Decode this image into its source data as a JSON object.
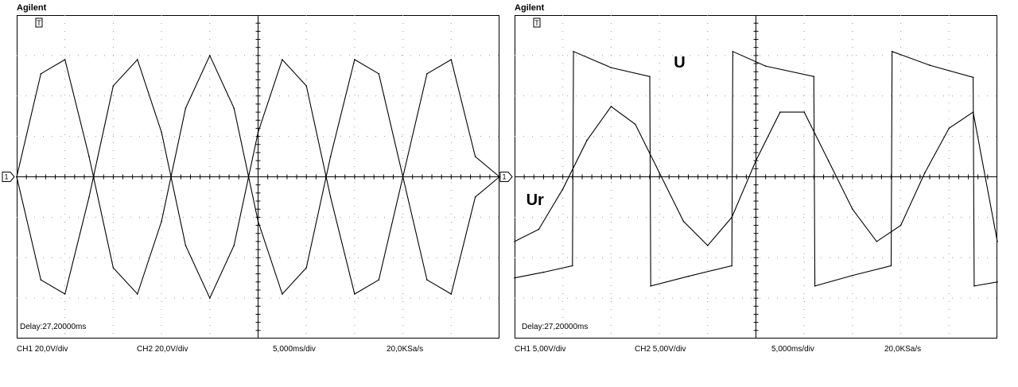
{
  "scopes": [
    {
      "brand": "Agilent",
      "delay": "Delay:27,20000ms",
      "status": {
        "ch1": "CH1 20,0V/div",
        "ch2": "CH2 20,0V/div",
        "time": "5,000ms/div",
        "rate": "20,0KSa/s"
      },
      "markers": {
        "trigger": "T",
        "ground": "1"
      },
      "annotations": []
    },
    {
      "brand": "Agilent",
      "delay": "Delay:27,20000ms",
      "status": {
        "ch1": "CH1 5,00V/div",
        "ch2": "CH2 5,00V/div",
        "time": "5,000ms/div",
        "rate": "20,0KSa/s"
      },
      "markers": {
        "trigger": "T",
        "ground": "1"
      },
      "annotations": [
        "U",
        "Ur"
      ]
    }
  ],
  "chart_data": [
    {
      "type": "line",
      "xlabel": "",
      "ylabel": "",
      "grid": true,
      "xlim": [
        0,
        50
      ],
      "ylim": [
        -80,
        80
      ],
      "series": [
        {
          "x": [
            0,
            2.5,
            5,
            7.5,
            10,
            12.5,
            15,
            17.5,
            20,
            22.5,
            25,
            27.5,
            30,
            32.5,
            35,
            37.5,
            40,
            42.5,
            45,
            47.5,
            50
          ],
          "y": [
            0,
            51,
            58,
            10,
            -45,
            -58,
            -22,
            34,
            60,
            34,
            -22,
            -58,
            -45,
            10,
            58,
            51,
            0,
            -51,
            -58,
            -10,
            0
          ]
        },
        {
          "x": [
            0,
            2.5,
            5,
            7.5,
            10,
            12.5,
            15,
            17.5,
            20,
            22.5,
            25,
            27.5,
            30,
            32.5,
            35,
            37.5,
            40,
            42.5,
            45,
            47.5,
            50
          ],
          "y": [
            0,
            -51,
            -58,
            -10,
            45,
            58,
            22,
            -34,
            -60,
            -34,
            22,
            58,
            45,
            -10,
            -58,
            -51,
            0,
            51,
            58,
            10,
            0
          ]
        }
      ]
    },
    {
      "type": "line",
      "xlabel": "",
      "ylabel": "",
      "grid": true,
      "xlim": [
        0,
        50
      ],
      "ylim": [
        -20,
        20
      ],
      "series": [
        {
          "name": "U",
          "x": [
            0,
            3,
            6,
            6.1,
            10,
            14,
            14.1,
            18,
            22.5,
            22.6,
            26,
            31,
            31.1,
            35,
            39,
            39.1,
            43,
            47.5,
            47.6,
            50
          ],
          "y": [
            -12.5,
            -11.8,
            -11.0,
            15.5,
            13.5,
            12.4,
            -13.5,
            -12.3,
            -11.0,
            15.5,
            13.7,
            12.4,
            -13.5,
            -12.2,
            -11.0,
            15.5,
            13.8,
            12.3,
            -13.5,
            -13.0
          ]
        },
        {
          "name": "Ur",
          "x": [
            0,
            2.5,
            5,
            7.5,
            10,
            12.5,
            15,
            17.5,
            20,
            22.5,
            25,
            27.5,
            30,
            32.5,
            35,
            37.5,
            40,
            42.5,
            45,
            47.5,
            50
          ],
          "y": [
            -8.0,
            -6.5,
            -1.5,
            4.5,
            8.7,
            6.5,
            0.5,
            -5.5,
            -8.5,
            -5.0,
            2.0,
            8.0,
            8.0,
            2.0,
            -4.0,
            -8.0,
            -6.0,
            0.5,
            6.0,
            8.0,
            -8.0
          ]
        }
      ]
    }
  ]
}
